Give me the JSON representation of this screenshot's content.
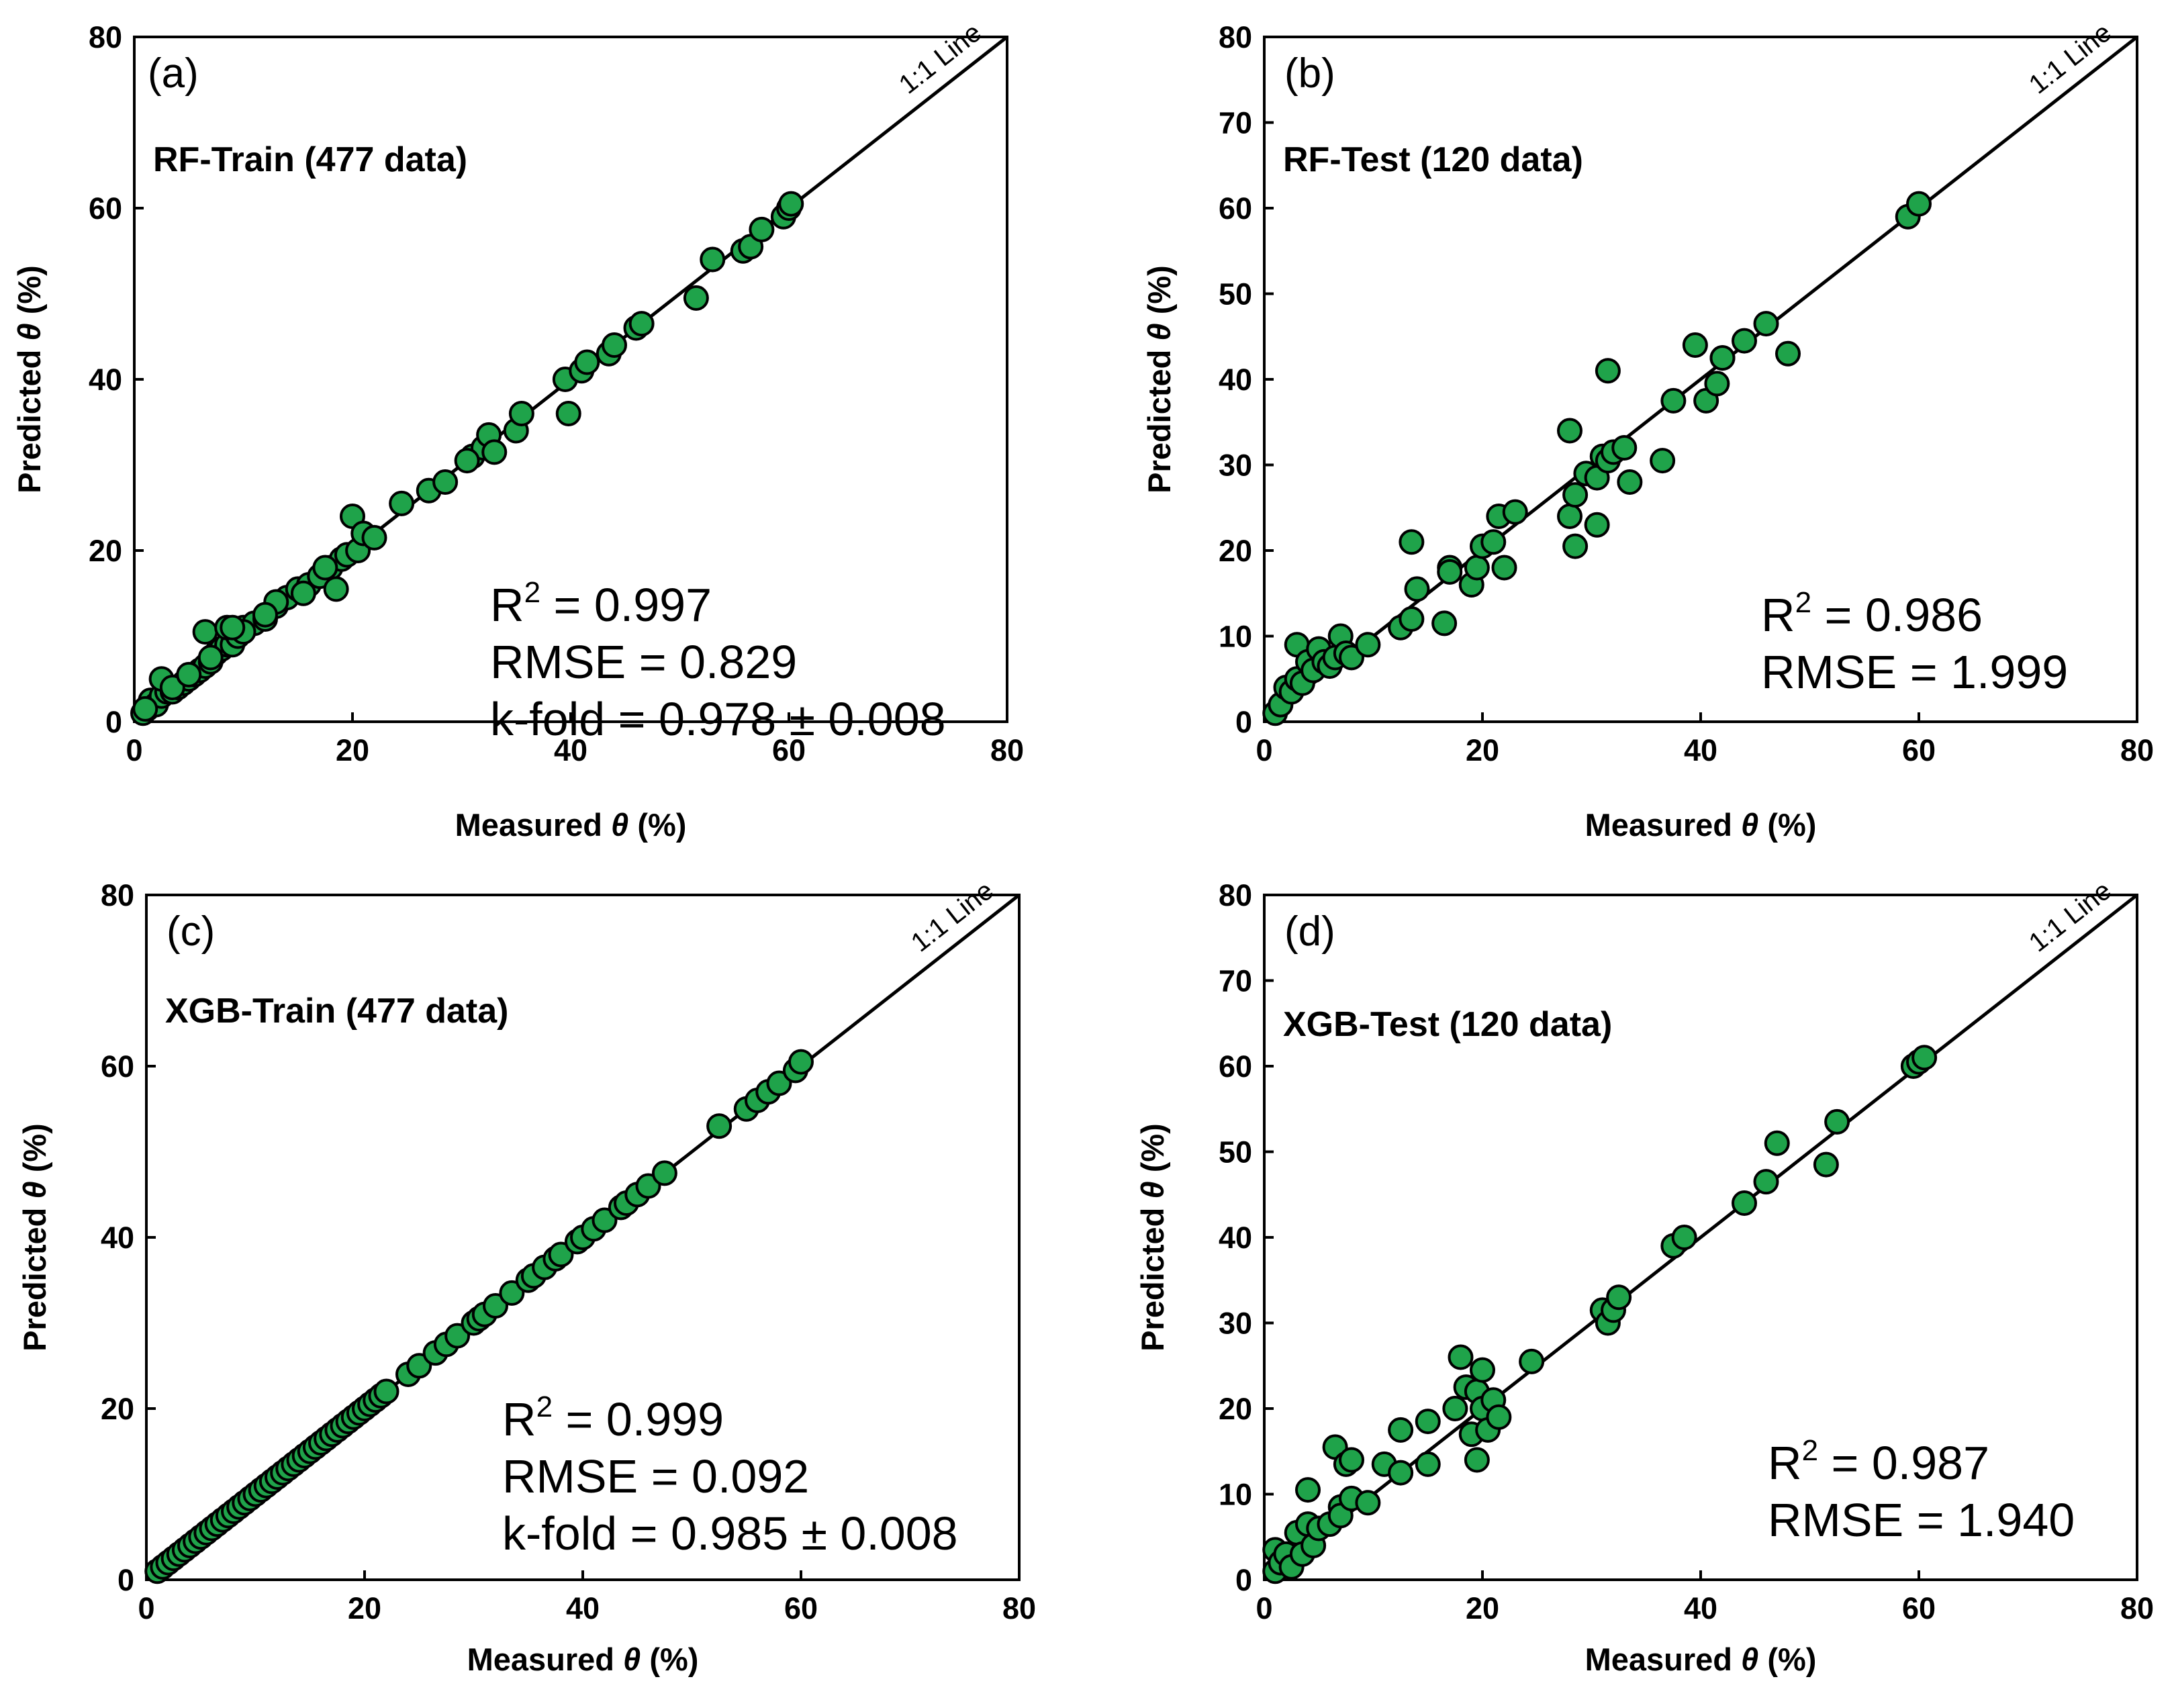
{
  "chart_data": [
    {
      "type": "scatter",
      "panel_label": "(a)",
      "title": "RF-Train (477 data)",
      "xlabel_main": "Measured ",
      "xlabel_symbol": "θ",
      "xlabel_unit": " (%)",
      "ylabel_main": "Predicted ",
      "ylabel_symbol": "θ",
      "ylabel_unit": " (%)",
      "xlim": [
        0,
        80
      ],
      "ylim": [
        0,
        80
      ],
      "xticks": [
        0,
        20,
        40,
        60,
        80
      ],
      "yticks": [
        0,
        20,
        40,
        60,
        80
      ],
      "reference_line_label": "1:1 Line",
      "stats": [
        {
          "prefix": "R",
          "sup": "2",
          "rest": " = 0.997"
        },
        {
          "prefix": "RMSE = 0.829",
          "sup": "",
          "rest": ""
        },
        {
          "prefix": "k-fold = 0.978 ± 0.008",
          "sup": "",
          "rest": ""
        }
      ],
      "marker_fill": "#1fa34a",
      "marker_edge": "#000000",
      "x": [
        0.8,
        1.2,
        1.5,
        2.0,
        2.5,
        3.0,
        3.5,
        4.0,
        4.5,
        5.0,
        5.5,
        6.0,
        6.5,
        7.0,
        7.5,
        8.0,
        8.5,
        9.0,
        9.5,
        10.0,
        11.0,
        12.0,
        13.0,
        14.0,
        15.0,
        16.0,
        17.0,
        18.0,
        18.5,
        19.0,
        19.5,
        20.0,
        20.5,
        21.0,
        24.5,
        27.0,
        28.5,
        31.0,
        32.0,
        32.5,
        33.0,
        35.0,
        35.5,
        39.5,
        39.8,
        41.0,
        41.5,
        43.5,
        44.0,
        46.0,
        46.5,
        51.5,
        53.0,
        55.8,
        56.5,
        57.5,
        59.5,
        60.0,
        60.2,
        6.5,
        8.5,
        2.5,
        1.0,
        17.5,
        15.5,
        13.0,
        10.0,
        9.0,
        3.5,
        5.0,
        7.0,
        12.0,
        22.0,
        30.5
      ],
      "y": [
        1.0,
        1.5,
        2.5,
        2.0,
        3.0,
        3.5,
        3.5,
        4.0,
        4.5,
        5.0,
        5.5,
        6.0,
        6.5,
        7.0,
        8.0,
        8.5,
        9.0,
        9.0,
        10.0,
        11.0,
        11.5,
        12.0,
        13.5,
        14.5,
        15.5,
        16.0,
        17.0,
        18.0,
        15.5,
        19.0,
        19.5,
        24.0,
        20.0,
        22.0,
        25.5,
        27.0,
        28.0,
        31.0,
        32.0,
        33.5,
        31.5,
        34.0,
        36.0,
        40.0,
        36.0,
        41.0,
        42.0,
        43.0,
        44.0,
        46.0,
        46.5,
        49.5,
        54.0,
        55.0,
        55.5,
        57.5,
        59.0,
        60.0,
        60.5,
        10.5,
        11.0,
        5.0,
        1.5,
        18.0,
        15.0,
        14.0,
        10.5,
        11.0,
        4.0,
        5.5,
        7.5,
        12.5,
        21.5,
        30.5
      ]
    },
    {
      "type": "scatter",
      "panel_label": "(b)",
      "title": "RF-Test (120 data)",
      "xlabel_main": "Measured ",
      "xlabel_symbol": "θ",
      "xlabel_unit": " (%)",
      "ylabel_main": "Predicted ",
      "ylabel_symbol": "θ",
      "ylabel_unit": " (%)",
      "xlim": [
        0,
        80
      ],
      "ylim": [
        0,
        80
      ],
      "xticks": [
        0,
        20,
        40,
        60,
        80
      ],
      "yticks": [
        0,
        10,
        20,
        30,
        40,
        50,
        60,
        70,
        80
      ],
      "reference_line_label": "1:1 Line",
      "stats": [
        {
          "prefix": "R",
          "sup": "2",
          "rest": " = 0.986"
        },
        {
          "prefix": "RMSE = 1.999",
          "sup": "",
          "rest": ""
        }
      ],
      "marker_fill": "#1fa34a",
      "marker_edge": "#000000",
      "x": [
        1.0,
        1.5,
        2.0,
        2.5,
        3.0,
        3.0,
        3.5,
        4.0,
        4.5,
        5.0,
        5.5,
        6.0,
        6.5,
        7.0,
        7.5,
        8.0,
        9.5,
        12.5,
        13.5,
        13.5,
        14.0,
        16.5,
        17.0,
        17.0,
        19.0,
        19.5,
        20.0,
        21.0,
        21.5,
        22.0,
        23.0,
        28.0,
        28.0,
        28.5,
        28.5,
        29.5,
        30.5,
        30.5,
        31.0,
        31.5,
        31.5,
        32.0,
        33.0,
        33.5,
        36.5,
        37.5,
        39.5,
        40.5,
        41.5,
        42.0,
        42.0,
        44.0,
        46.0,
        48.0,
        59.0,
        60.0
      ],
      "y": [
        1.0,
        2.0,
        4.0,
        3.5,
        9.0,
        5.0,
        4.5,
        7.0,
        6.0,
        8.5,
        7.0,
        6.5,
        7.5,
        10.0,
        8.0,
        7.5,
        9.0,
        11.0,
        12.0,
        21.0,
        15.5,
        11.5,
        18.0,
        17.5,
        16.0,
        18.0,
        20.5,
        21.0,
        24.0,
        18.0,
        24.5,
        34.0,
        24.0,
        20.5,
        26.5,
        29.0,
        23.0,
        28.5,
        31.0,
        30.5,
        41.0,
        31.5,
        32.0,
        28.0,
        30.5,
        37.5,
        44.0,
        37.5,
        39.5,
        42.5,
        42.5,
        44.5,
        46.5,
        43.0,
        59.0,
        60.5
      ]
    },
    {
      "type": "scatter",
      "panel_label": "(c)",
      "title": "XGB-Train (477 data)",
      "xlabel_main": "Measured ",
      "xlabel_symbol": "θ",
      "xlabel_unit": " (%)",
      "ylabel_main": "Predicted ",
      "ylabel_symbol": "θ",
      "ylabel_unit": " (%)",
      "xlim": [
        0,
        80
      ],
      "ylim": [
        0,
        80
      ],
      "xticks": [
        0,
        20,
        40,
        60,
        80
      ],
      "yticks": [
        0,
        20,
        40,
        60,
        80
      ],
      "reference_line_label": "1:1 Line",
      "stats": [
        {
          "prefix": "R",
          "sup": "2",
          "rest": " = 0.999"
        },
        {
          "prefix": "RMSE = 0.092",
          "sup": "",
          "rest": ""
        },
        {
          "prefix": "k-fold = 0.985 ± 0.008",
          "sup": "",
          "rest": ""
        }
      ],
      "marker_fill": "#1fa34a",
      "marker_edge": "#000000",
      "x": [
        1.0,
        1.5,
        2.0,
        2.5,
        3.0,
        3.5,
        4.0,
        4.5,
        5.0,
        5.5,
        6.0,
        6.5,
        7.0,
        7.5,
        8.0,
        8.5,
        9.0,
        9.5,
        10.0,
        10.5,
        11.0,
        11.5,
        12.0,
        12.5,
        13.0,
        13.5,
        14.0,
        14.5,
        15.0,
        15.5,
        16.0,
        16.5,
        17.0,
        17.5,
        18.0,
        18.5,
        19.0,
        19.5,
        20.0,
        20.5,
        21.0,
        21.5,
        22.0,
        24.0,
        25.0,
        26.5,
        27.5,
        28.5,
        30.0,
        30.5,
        31.0,
        32.0,
        33.5,
        35.0,
        35.5,
        36.5,
        37.5,
        38.0,
        39.5,
        40.0,
        41.0,
        42.0,
        43.5,
        44.0,
        45.0,
        46.0,
        47.5,
        52.5,
        55.0,
        56.0,
        57.0,
        58.0,
        59.5,
        60.0
      ],
      "y": [
        1.0,
        1.5,
        2.0,
        2.5,
        3.0,
        3.5,
        4.0,
        4.5,
        5.0,
        5.5,
        6.0,
        6.5,
        7.0,
        7.5,
        8.0,
        8.5,
        9.0,
        9.5,
        10.0,
        10.5,
        11.0,
        11.5,
        12.0,
        12.5,
        13.0,
        13.5,
        14.0,
        14.5,
        15.0,
        15.5,
        16.0,
        16.5,
        17.0,
        17.5,
        18.0,
        18.5,
        19.0,
        19.5,
        20.0,
        20.5,
        21.0,
        21.5,
        22.0,
        24.0,
        25.0,
        26.5,
        27.5,
        28.5,
        30.0,
        30.5,
        31.0,
        32.0,
        33.5,
        35.0,
        35.5,
        36.5,
        37.5,
        38.0,
        39.5,
        40.0,
        41.0,
        42.0,
        43.5,
        44.0,
        45.0,
        46.0,
        47.5,
        53.0,
        55.0,
        56.0,
        57.0,
        58.0,
        59.5,
        60.5
      ]
    },
    {
      "type": "scatter",
      "panel_label": "(d)",
      "title": "XGB-Test (120 data)",
      "xlabel_main": "Measured ",
      "xlabel_symbol": "θ",
      "xlabel_unit": " (%)",
      "ylabel_main": "Predicted ",
      "ylabel_symbol": "θ",
      "ylabel_unit": " (%)",
      "xlim": [
        0,
        80
      ],
      "ylim": [
        0,
        80
      ],
      "xticks": [
        0,
        20,
        40,
        60,
        80
      ],
      "yticks": [
        0,
        10,
        20,
        30,
        40,
        50,
        60,
        70,
        80
      ],
      "reference_line_label": "1:1 Line",
      "stats": [
        {
          "prefix": "R",
          "sup": "2",
          "rest": " = 0.987"
        },
        {
          "prefix": "RMSE = 1.940",
          "sup": "",
          "rest": ""
        }
      ],
      "marker_fill": "#1fa34a",
      "marker_edge": "#000000",
      "x": [
        1.0,
        1.0,
        1.5,
        2.0,
        2.5,
        3.0,
        3.5,
        4.0,
        4.0,
        4.5,
        5.0,
        6.0,
        6.5,
        7.0,
        7.0,
        7.5,
        8.0,
        8.0,
        9.5,
        11.0,
        12.5,
        12.5,
        15.0,
        15.0,
        17.5,
        18.0,
        18.5,
        19.0,
        19.5,
        19.5,
        20.0,
        20.0,
        20.5,
        21.0,
        21.5,
        24.5,
        31.0,
        31.5,
        32.0,
        32.5,
        37.5,
        38.5,
        44.0,
        46.0,
        47.0,
        51.5,
        52.5,
        59.5,
        60.0,
        60.5
      ],
      "y": [
        1.0,
        3.5,
        2.0,
        3.0,
        1.5,
        5.5,
        3.0,
        6.5,
        10.5,
        4.0,
        6.0,
        6.5,
        15.5,
        8.5,
        7.5,
        13.5,
        9.5,
        14.0,
        9.0,
        13.5,
        17.5,
        12.5,
        18.5,
        13.5,
        20.0,
        26.0,
        22.5,
        17.0,
        14.0,
        22.0,
        20.0,
        24.5,
        17.5,
        21.0,
        19.0,
        25.5,
        31.5,
        30.0,
        31.5,
        33.0,
        39.0,
        40.0,
        44.0,
        46.5,
        51.0,
        48.5,
        53.5,
        60.0,
        60.5,
        61.0
      ]
    }
  ]
}
